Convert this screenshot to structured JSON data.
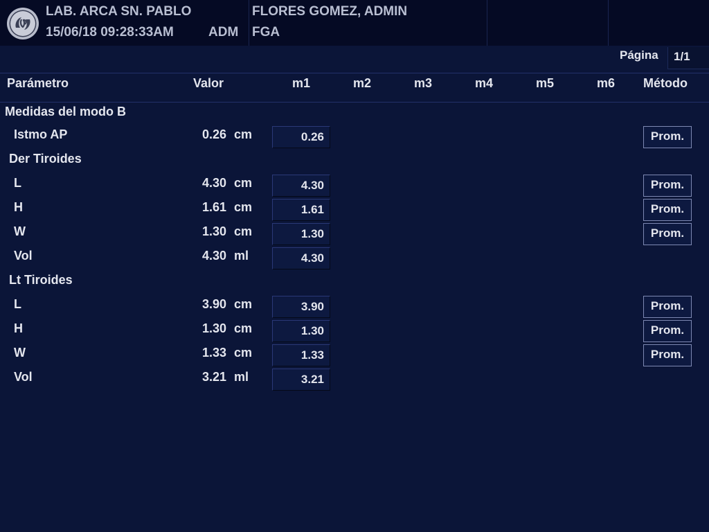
{
  "header": {
    "lab_name": "LAB. ARCA SN. PABLO",
    "datetime": "15/06/18 09:28:33AM",
    "operator": "ADM",
    "patient_name": "FLORES GOMEZ, ADMIN",
    "patient_initials": "FGA",
    "logo_icon": "ge-logo-icon"
  },
  "pager": {
    "label": "Página",
    "value": "1/1"
  },
  "columns": {
    "parameter": "Parámetro",
    "value": "Valor",
    "m1": "m1",
    "m2": "m2",
    "m3": "m3",
    "m4": "m4",
    "m5": "m5",
    "m6": "m6",
    "method": "Método"
  },
  "sections": {
    "bmode": {
      "title": "Medidas del modo B",
      "rows": [
        {
          "param": "Istmo AP",
          "value": "0.26",
          "unit": "cm",
          "m1": "0.26",
          "method": "Prom."
        }
      ]
    },
    "right": {
      "title": "Der Tiroides",
      "rows": [
        {
          "param": "L",
          "value": "4.30",
          "unit": "cm",
          "m1": "4.30",
          "method": "Prom."
        },
        {
          "param": "H",
          "value": "1.61",
          "unit": "cm",
          "m1": "1.61",
          "method": "Prom."
        },
        {
          "param": "W",
          "value": "1.30",
          "unit": "cm",
          "m1": "1.30",
          "method": "Prom."
        },
        {
          "param": "Vol",
          "value": "4.30",
          "unit": "ml",
          "m1": "4.30"
        }
      ]
    },
    "left": {
      "title": "Lt Tiroides",
      "rows": [
        {
          "param": "L",
          "value": "3.90",
          "unit": "cm",
          "m1": "3.90",
          "method": "Prom."
        },
        {
          "param": "H",
          "value": "1.30",
          "unit": "cm",
          "m1": "1.30",
          "method": "Prom."
        },
        {
          "param": "W",
          "value": "1.33",
          "unit": "cm",
          "m1": "1.33",
          "method": "Prom."
        },
        {
          "param": "Vol",
          "value": "3.21",
          "unit": "ml",
          "m1": "3.21"
        }
      ]
    }
  }
}
